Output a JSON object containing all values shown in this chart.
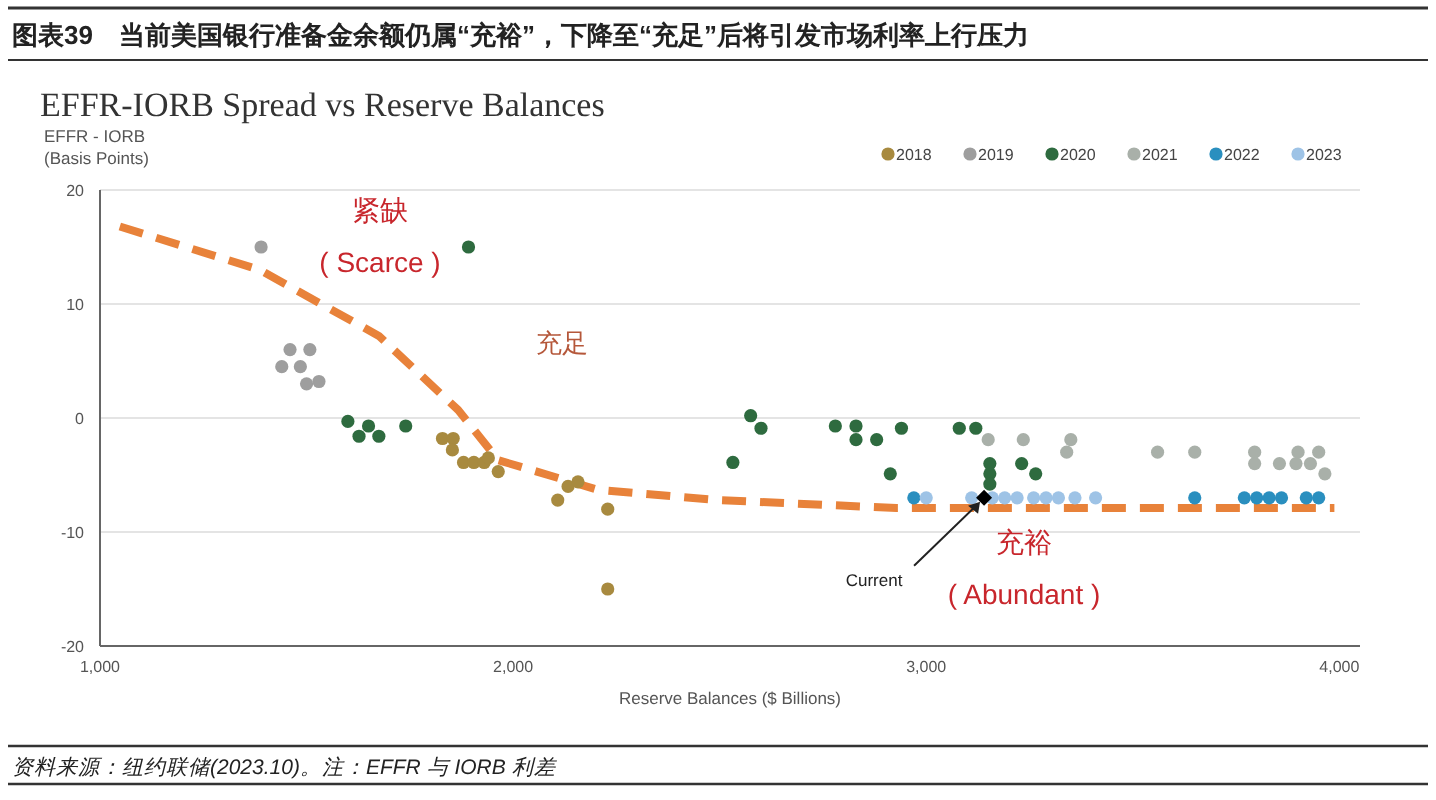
{
  "chart_data": {
    "type": "scatter",
    "title": "图表39　当前美国银行准备金余额仍属“充裕”，下降至“充足”后将引发市场利率上行压力",
    "subtitle": "EFFR-IORB Spread vs Reserve Balances",
    "xlabel": "Reserve Balances ($ Billions)",
    "ylabel": "EFFR - IORB\n(Basis Points)",
    "xlim": [
      1000,
      4050
    ],
    "ylim": [
      -20,
      20
    ],
    "xticks": [
      {
        "value": 1000,
        "label": "1,000"
      },
      {
        "value": 2000,
        "label": "2,000"
      },
      {
        "value": 3000,
        "label": "3,000"
      },
      {
        "value": 4000,
        "label": "4,000"
      }
    ],
    "yticks": [
      -20,
      -10,
      0,
      10,
      20
    ],
    "grid": "y",
    "legend": "top right",
    "marker": "circle",
    "series": [
      {
        "name": "2018",
        "color": "#a88a3f",
        "x": [
          1829,
          1855,
          1853,
          1880,
          1905,
          1930,
          1940,
          1964,
          2108,
          2133,
          2157,
          2229,
          2229
        ],
        "values": [
          -1.8,
          -1.8,
          -2.8,
          -3.9,
          -3.9,
          -3.9,
          -3.5,
          -4.7,
          -7.2,
          -6,
          -5.6,
          -8,
          -15
        ]
      },
      {
        "name": "2019",
        "color": "#9e9e9e",
        "x": [
          1390,
          1460,
          1508,
          1440,
          1485,
          1530,
          1500
        ],
        "values": [
          15,
          6,
          6,
          4.5,
          4.5,
          3.2,
          3
        ]
      },
      {
        "name": "2020",
        "color": "#2e6b3f",
        "x": [
          1892,
          1627,
          1675,
          1650,
          1740,
          1600,
          2532,
          2913,
          3154,
          3154,
          3154,
          3231,
          3265,
          2575,
          2600,
          2780,
          2830,
          2830,
          2880,
          2940,
          3080,
          3120
        ],
        "values": [
          15,
          -1.6,
          -1.6,
          -0.7,
          -0.7,
          -0.3,
          -3.9,
          -4.9,
          -4.9,
          -5.8,
          -4,
          -4,
          -4.9,
          0.2,
          -0.9,
          -0.7,
          -0.7,
          -1.9,
          -1.9,
          -0.9,
          -0.9,
          -0.9
        ]
      },
      {
        "name": "2021",
        "color": "#a9b0a9",
        "x": [
          3150,
          3235,
          3350,
          3340,
          3560,
          3650,
          3795,
          3900,
          3950,
          3795,
          3855,
          3895,
          3930,
          3965
        ],
        "values": [
          -1.9,
          -1.9,
          -1.9,
          -3,
          -3,
          -3,
          -3,
          -3,
          -3,
          -4,
          -4,
          -4,
          -4,
          -4.9
        ]
      },
      {
        "name": "2022",
        "color": "#2a8fbf",
        "x": [
          2970,
          3650,
          3770,
          3800,
          3830,
          3860,
          3920,
          3950
        ],
        "values": [
          -7,
          -7,
          -7,
          -7,
          -7,
          -7,
          -7,
          -7
        ]
      },
      {
        "name": "2023",
        "color": "#9ec3e6",
        "x": [
          3000,
          3110,
          3160,
          3190,
          3220,
          3260,
          3290,
          3320,
          3360,
          3410
        ],
        "values": [
          -7,
          -7,
          -7,
          -7,
          -7,
          -7,
          -7,
          -7,
          -7,
          -7
        ]
      },
      {
        "type": "scatter",
        "marker": "diamond",
        "color": "#000000",
        "x": [
          3140
        ],
        "values": [
          -7
        ]
      },
      {
        "type": "line",
        "marker": "none",
        "line_style": "dashed",
        "color": "#e8823a",
        "x": [
          1048,
          1386,
          1675,
          1867,
          1964,
          2205,
          2494,
          2928,
          3988
        ],
        "values": [
          16.8,
          13,
          7.2,
          0.7,
          -3.7,
          -6.3,
          -7.2,
          -7.9,
          -7.9
        ]
      }
    ],
    "annotations": [
      "紧缺",
      "( Scarce )",
      "充足",
      "充裕",
      "( Abundant )",
      {
        "text": "Current",
        "x": 3140,
        "y": -7
      },
      "资料来源：纽约联储(2023.10)。注：EFFR 与 IORB 利差"
    ]
  }
}
